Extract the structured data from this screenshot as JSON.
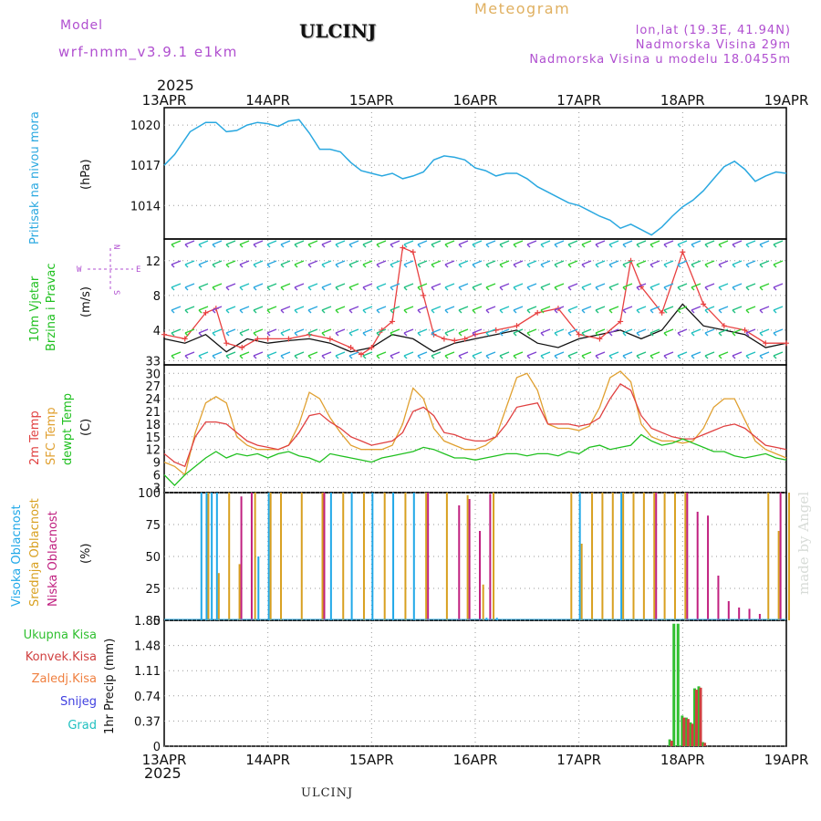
{
  "header": {
    "model_label": "Model",
    "model_version": "wrf-nmm_v3.9.1  e1km",
    "station": "ULCINJ",
    "chart_title": "Meteogram",
    "coords": "lon,lat (19.3E, 41.94N)",
    "elevation": "Nadmorska Visina 29m",
    "model_elevation": "Nadmorska Visina u modelu 18.0455m"
  },
  "footer": {
    "station": "ULCINJ",
    "credit": "made by Angel"
  },
  "time_axis": {
    "year": "2025",
    "ticks": [
      "13APR",
      "14APR",
      "15APR",
      "16APR",
      "17APR",
      "18APR",
      "19APR"
    ]
  },
  "colors": {
    "pressure": "#2aa8e0",
    "wind_speed": "#e84040",
    "wind_gust": "#111111",
    "temp_2m": "#e04040",
    "temp_sfc": "#e0a030",
    "dewpoint": "#20c020",
    "cloud_high": "#20a8e8",
    "cloud_mid": "#d8a020",
    "cloud_low": "#c02080",
    "precip_total": "#30c030",
    "precip_conv": "#d04040",
    "precip_frz": "#f08040",
    "snow": "#4040e0",
    "hail": "#20c0c0"
  },
  "panels": {
    "pressure": {
      "label": "Pritisak na nivou mora",
      "unit": "(hPa)"
    },
    "wind": {
      "label1": "10m Vjetar",
      "label2": "Brzina i Pravac",
      "unit": "(m/s)",
      "compass_n": "N",
      "compass_s": "S",
      "compass_w": "W",
      "compass_e": "E"
    },
    "temp": {
      "label1": "2m Temp",
      "label2": "SFC Temp",
      "label3": "dewpt Temp",
      "unit": "(C)"
    },
    "cloud": {
      "label1": "Visoka Oblacnost",
      "label2": "Srednja Oblacnost",
      "label3": "Niska Oblacnost",
      "unit": "(%)"
    },
    "precip": {
      "legend": [
        "Ukupna Kisa",
        "Konvek.Kisa",
        "Zaledj.Kisa",
        "Snijeg",
        "Grad"
      ],
      "unit": "1hr Precip (mm)"
    }
  },
  "chart_data": [
    {
      "type": "line",
      "title": "",
      "ylabel": "(hPa)",
      "ylim": [
        1011.5,
        1021.3
      ],
      "yticks": [
        "1014",
        "1017",
        "1020"
      ],
      "series": [
        {
          "name": "Pritisak na nivou mora",
          "x": [
            0,
            0.1,
            0.25,
            0.4,
            0.5,
            0.6,
            0.7,
            0.8,
            0.9,
            1.0,
            1.1,
            1.2,
            1.3,
            1.4,
            1.5,
            1.6,
            1.7,
            1.8,
            1.9,
            2.0,
            2.1,
            2.2,
            2.3,
            2.4,
            2.5,
            2.6,
            2.7,
            2.8,
            2.9,
            3.0,
            3.1,
            3.2,
            3.3,
            3.4,
            3.5,
            3.6,
            3.7,
            3.8,
            3.9,
            4.0,
            4.1,
            4.2,
            4.3,
            4.4,
            4.5,
            4.6,
            4.7,
            4.8,
            4.9,
            5.0,
            5.1,
            5.2,
            5.3,
            5.4,
            5.5,
            5.6,
            5.7,
            5.8,
            5.9,
            6.0
          ],
          "values": [
            1017.0,
            1017.8,
            1019.5,
            1020.2,
            1020.2,
            1019.5,
            1019.6,
            1020.0,
            1020.2,
            1020.1,
            1019.9,
            1020.3,
            1020.4,
            1019.4,
            1018.2,
            1018.2,
            1018.0,
            1017.2,
            1016.6,
            1016.4,
            1016.2,
            1016.4,
            1016.0,
            1016.2,
            1016.5,
            1017.4,
            1017.7,
            1017.6,
            1017.4,
            1016.8,
            1016.6,
            1016.2,
            1016.4,
            1016.4,
            1016.0,
            1015.4,
            1015.0,
            1014.6,
            1014.2,
            1014.0,
            1013.6,
            1013.2,
            1012.9,
            1012.3,
            1012.6,
            1012.2,
            1011.8,
            1012.4,
            1013.2,
            1013.9,
            1014.4,
            1015.1,
            1016.0,
            1016.9,
            1017.3,
            1016.7,
            1015.8,
            1016.2,
            1016.5,
            1016.4
          ]
        }
      ]
    },
    {
      "type": "line",
      "title": "",
      "ylabel": "(m/s)",
      "ylim": [
        0,
        14.5
      ],
      "yticks": [
        "4",
        "8",
        "12"
      ],
      "series": [
        {
          "name": "speed",
          "x": [
            0,
            0.2,
            0.4,
            0.5,
            0.6,
            0.75,
            0.9,
            1.0,
            1.2,
            1.4,
            1.6,
            1.8,
            1.9,
            2.0,
            2.1,
            2.2,
            2.3,
            2.4,
            2.5,
            2.6,
            2.7,
            2.8,
            2.9,
            3.0,
            3.2,
            3.4,
            3.6,
            3.8,
            4.0,
            4.2,
            4.4,
            4.5,
            4.6,
            4.8,
            5.0,
            5.2,
            5.4,
            5.6,
            5.8,
            6.0
          ],
          "values": [
            3.5,
            3.0,
            6.0,
            6.5,
            2.5,
            2.0,
            3.0,
            3.0,
            3.0,
            3.5,
            3.0,
            2.0,
            1.2,
            2.0,
            4.0,
            5.0,
            13.5,
            13.0,
            8.0,
            3.5,
            3.0,
            2.8,
            3.0,
            3.5,
            4.0,
            4.5,
            6.0,
            6.5,
            3.5,
            3.0,
            5.0,
            12.0,
            9.0,
            6.0,
            13.0,
            7.0,
            4.5,
            4.0,
            2.5,
            2.5
          ]
        },
        {
          "name": "gust",
          "x": [
            0,
            0.2,
            0.4,
            0.6,
            0.8,
            1.0,
            1.2,
            1.4,
            1.6,
            1.8,
            2.0,
            2.2,
            2.4,
            2.6,
            2.8,
            3.0,
            3.2,
            3.4,
            3.6,
            3.8,
            4.0,
            4.2,
            4.4,
            4.6,
            4.8,
            5.0,
            5.2,
            5.4,
            5.6,
            5.8,
            6.0
          ],
          "values": [
            3.0,
            2.5,
            3.5,
            1.5,
            3.0,
            2.5,
            2.8,
            3.0,
            2.5,
            1.5,
            2.0,
            3.5,
            3.0,
            1.5,
            2.5,
            3.0,
            3.5,
            4.0,
            2.5,
            2.0,
            3.0,
            3.5,
            4.0,
            3.0,
            4.0,
            7.0,
            4.5,
            4.0,
            3.5,
            2.0,
            2.5
          ]
        }
      ]
    },
    {
      "type": "line",
      "title": "",
      "ylabel": "(C)",
      "ylim": [
        1.8,
        32
      ],
      "yticks": [
        "3",
        "6",
        "9",
        "12",
        "15",
        "18",
        "21",
        "24",
        "27",
        "30",
        "33"
      ],
      "series": [
        {
          "name": "2m Temp",
          "x": [
            0,
            0.1,
            0.2,
            0.3,
            0.4,
            0.5,
            0.6,
            0.7,
            0.8,
            0.9,
            1.0,
            1.1,
            1.2,
            1.3,
            1.4,
            1.5,
            1.6,
            1.7,
            1.8,
            1.9,
            2.0,
            2.1,
            2.2,
            2.3,
            2.4,
            2.5,
            2.6,
            2.7,
            2.8,
            2.9,
            3.0,
            3.1,
            3.2,
            3.3,
            3.4,
            3.5,
            3.6,
            3.7,
            3.8,
            3.9,
            4.0,
            4.1,
            4.2,
            4.3,
            4.4,
            4.5,
            4.6,
            4.7,
            4.8,
            4.9,
            5.0,
            5.1,
            5.2,
            5.3,
            5.4,
            5.5,
            5.6,
            5.7,
            5.8,
            5.9,
            6.0
          ],
          "values": [
            11,
            9,
            8,
            15,
            18.5,
            18.5,
            18,
            16,
            14,
            13,
            12.5,
            12,
            13,
            16,
            20,
            20.5,
            18.5,
            17,
            15,
            14,
            13,
            13.5,
            14,
            16,
            21,
            22,
            20,
            16,
            15.5,
            14.5,
            14,
            14,
            15,
            18,
            22,
            22.5,
            23,
            18,
            18,
            18,
            17.5,
            18,
            19.5,
            24,
            27.5,
            26,
            20,
            17,
            16,
            15,
            14.5,
            14.5,
            15.5,
            16.5,
            17.5,
            18,
            17,
            15,
            13,
            12.5,
            12
          ]
        },
        {
          "name": "SFC Temp",
          "x": [
            0,
            0.1,
            0.2,
            0.3,
            0.4,
            0.5,
            0.6,
            0.7,
            0.8,
            0.9,
            1.0,
            1.1,
            1.2,
            1.3,
            1.4,
            1.5,
            1.6,
            1.7,
            1.8,
            1.9,
            2.0,
            2.1,
            2.2,
            2.3,
            2.4,
            2.5,
            2.6,
            2.7,
            2.8,
            2.9,
            3.0,
            3.1,
            3.2,
            3.3,
            3.4,
            3.5,
            3.6,
            3.7,
            3.8,
            3.9,
            4.0,
            4.1,
            4.2,
            4.3,
            4.4,
            4.5,
            4.6,
            4.7,
            4.8,
            4.9,
            5.0,
            5.1,
            5.2,
            5.3,
            5.4,
            5.5,
            5.6,
            5.7,
            5.8,
            5.9,
            6.0
          ],
          "values": [
            9,
            8,
            6,
            16,
            23,
            24.5,
            23,
            15,
            13,
            12,
            12,
            12,
            13,
            18,
            25.5,
            24,
            19.5,
            16,
            13,
            12,
            12,
            12,
            13,
            18,
            26.5,
            24,
            17,
            14,
            13,
            12,
            12,
            13,
            15,
            22,
            29,
            30,
            26,
            18,
            17,
            17,
            16.5,
            17.5,
            22,
            29,
            30.5,
            28,
            18,
            15,
            14,
            14,
            13.5,
            14,
            17,
            22,
            24,
            24,
            19,
            14,
            12,
            11,
            10
          ]
        },
        {
          "name": "dewpt Temp",
          "x": [
            0,
            0.1,
            0.2,
            0.3,
            0.4,
            0.5,
            0.6,
            0.7,
            0.8,
            0.9,
            1.0,
            1.1,
            1.2,
            1.3,
            1.4,
            1.5,
            1.6,
            1.7,
            1.8,
            1.9,
            2.0,
            2.1,
            2.2,
            2.3,
            2.4,
            2.5,
            2.6,
            2.7,
            2.8,
            2.9,
            3.0,
            3.1,
            3.2,
            3.3,
            3.4,
            3.5,
            3.6,
            3.7,
            3.8,
            3.9,
            4.0,
            4.1,
            4.2,
            4.3,
            4.4,
            4.5,
            4.6,
            4.7,
            4.8,
            4.9,
            5.0,
            5.1,
            5.2,
            5.3,
            5.4,
            5.5,
            5.6,
            5.7,
            5.8,
            5.9,
            6.0
          ],
          "values": [
            6,
            3.5,
            6,
            8,
            10,
            11.5,
            10,
            11,
            10.5,
            11,
            10,
            11,
            11.5,
            10.5,
            10,
            9,
            11,
            10.5,
            10,
            9.5,
            9,
            10,
            10.5,
            11,
            11.5,
            12.5,
            12,
            11,
            10,
            10,
            9.5,
            10,
            10.5,
            11,
            11,
            10.5,
            11,
            11,
            10.5,
            11.5,
            11,
            12.5,
            13,
            12,
            12.5,
            13,
            15.5,
            14,
            13,
            13.5,
            14.5,
            13.5,
            12.5,
            11.5,
            11.5,
            10.5,
            10,
            10.5,
            11,
            10,
            9.5
          ]
        }
      ]
    },
    {
      "type": "bar",
      "title": "",
      "ylabel": "(%)",
      "ylim": [
        0,
        100
      ],
      "yticks": [
        "0",
        "25",
        "50",
        "75",
        "100"
      ],
      "series": [
        {
          "name": "Visoka Oblacnost",
          "x": [
            0.35,
            0.4,
            0.45,
            0.5,
            0.9,
            1.0,
            1.6,
            1.8,
            2.0,
            2.2,
            2.4,
            3.1,
            3.2,
            4.0,
            4.4
          ],
          "values": [
            100,
            100,
            100,
            100,
            50,
            100,
            100,
            100,
            100,
            100,
            100,
            2,
            2,
            100,
            100
          ]
        },
        {
          "name": "Srednja Oblacnost",
          "x": [
            0.4,
            0.5,
            0.6,
            0.7,
            0.85,
            1.0,
            1.1,
            1.3,
            1.5,
            1.7,
            1.9,
            2.1,
            2.3,
            2.5,
            2.7,
            2.9,
            3.05,
            3.15,
            3.9,
            4.0,
            4.1,
            4.2,
            4.3,
            4.4,
            4.5,
            4.6,
            4.7,
            4.8,
            4.9,
            5.0,
            5.8,
            5.9,
            6.0
          ],
          "values": [
            100,
            37,
            100,
            44,
            100,
            100,
            100,
            100,
            100,
            100,
            100,
            100,
            100,
            100,
            100,
            98,
            28,
            100,
            100,
            60,
            100,
            100,
            100,
            100,
            100,
            100,
            100,
            100,
            100,
            100,
            100,
            70,
            100
          ]
        },
        {
          "name": "Niska Oblacnost",
          "x": [
            0.7,
            0.8,
            1.5,
            2.5,
            2.8,
            2.9,
            3.0,
            3.1,
            4.7,
            5.0,
            5.1,
            5.2,
            5.3,
            5.4,
            5.5,
            5.6,
            5.7,
            5.9
          ],
          "values": [
            97,
            100,
            100,
            100,
            90,
            95,
            70,
            99,
            100,
            100,
            85,
            82,
            35,
            15,
            10,
            9,
            5,
            100
          ]
        }
      ]
    },
    {
      "type": "bar",
      "title": "",
      "ylabel": "1hr Precip (mm)",
      "ylim": [
        0,
        1.85
      ],
      "yticks": [
        "0",
        "0.37",
        "0.74",
        "1.11",
        "1.48",
        "1.85"
      ],
      "series": [
        {
          "name": "Ukupna Kisa",
          "x": [
            4.88,
            4.92,
            4.96,
            5.0,
            5.04,
            5.08,
            5.12,
            5.16,
            5.2
          ],
          "values": [
            0.1,
            1.8,
            1.8,
            0.45,
            0.42,
            0.35,
            0.85,
            0.88,
            0.06
          ]
        },
        {
          "name": "Konvek.Kisa",
          "x": [
            4.88,
            4.92,
            4.96,
            5.0,
            5.04,
            5.08,
            5.12,
            5.16,
            5.2
          ],
          "values": [
            0.08,
            0.0,
            0.0,
            0.42,
            0.4,
            0.33,
            0.83,
            0.86,
            0.05
          ]
        }
      ]
    }
  ]
}
